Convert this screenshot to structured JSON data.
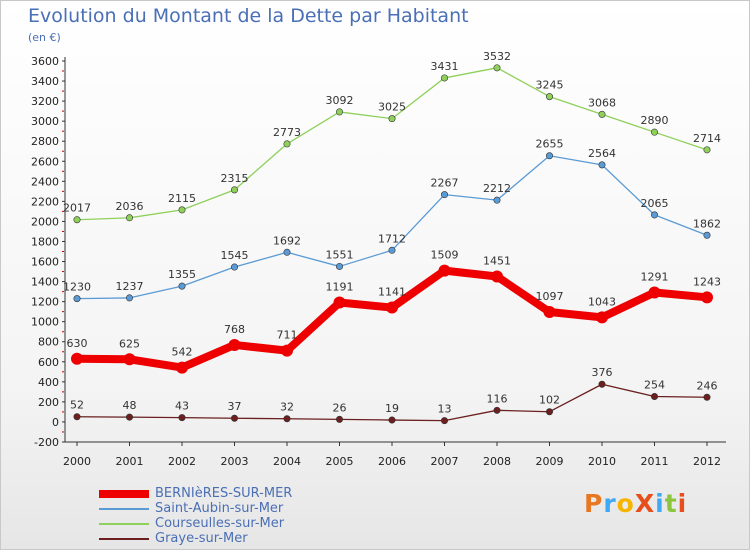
{
  "title": "Evolution du Montant de la Dette par Habitant",
  "unit": "(en €)",
  "logo_text": "ProXiti",
  "chart_data": {
    "type": "line",
    "x": [
      "2000",
      "2001",
      "2002",
      "2003",
      "2004",
      "2005",
      "2006",
      "2007",
      "2008",
      "2009",
      "2010",
      "2011",
      "2012"
    ],
    "ylim": [
      -200,
      3600
    ],
    "yticks": [
      -200,
      0,
      200,
      400,
      600,
      800,
      1000,
      1200,
      1400,
      1600,
      1800,
      2000,
      2200,
      2400,
      2600,
      2800,
      3000,
      3200,
      3400,
      3600
    ],
    "grid": false,
    "legend": "bottom-left",
    "series": [
      {
        "name": "BERNIèRES-SUR-MER",
        "color": "#ee0000",
        "values": [
          630,
          625,
          542,
          768,
          711,
          1191,
          1141,
          1509,
          1451,
          1097,
          1043,
          1291,
          1243
        ]
      },
      {
        "name": "Saint-Aubin-sur-Mer",
        "color": "#5b9bd5",
        "values": [
          1230,
          1237,
          1355,
          1545,
          1692,
          1551,
          1712,
          2267,
          2212,
          2655,
          2564,
          2065,
          1862
        ]
      },
      {
        "name": "Courseulles-sur-Mer",
        "color": "#8fd05a",
        "values": [
          2017,
          2036,
          2115,
          2315,
          2773,
          3092,
          3025,
          3431,
          3532,
          3245,
          3068,
          2890,
          2714
        ]
      },
      {
        "name": "Graye-sur-Mer",
        "color": "#6b1f1f",
        "values": [
          52,
          48,
          43,
          37,
          32,
          26,
          19,
          13,
          116,
          102,
          376,
          254,
          246
        ]
      }
    ]
  }
}
